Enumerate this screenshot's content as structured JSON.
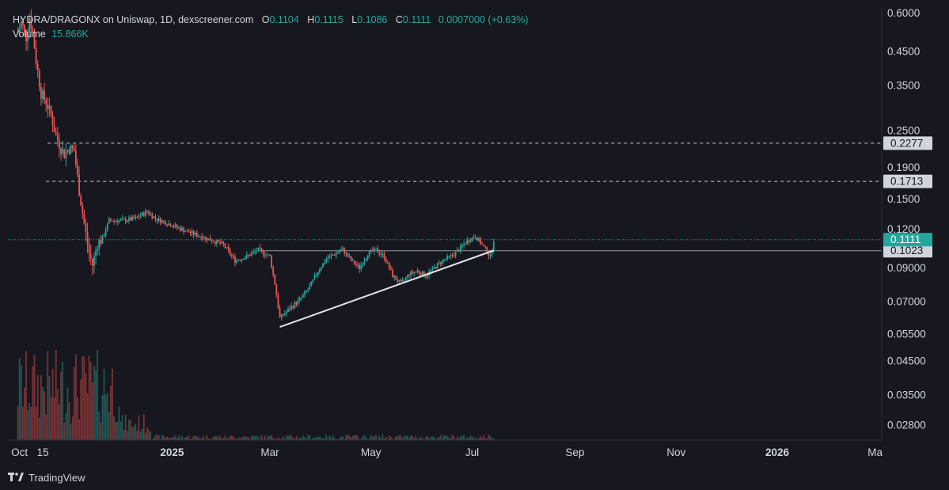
{
  "header": {
    "pair": "HYDRA/DRAGONX on Uniswap, 1D, dexscreener.com",
    "o_label": "O",
    "o_value": "0.1104",
    "h_label": "H",
    "h_value": "0.1115",
    "l_label": "L",
    "l_value": "0.1086",
    "c_label": "C",
    "c_value": "0.1111",
    "change": "0.0007000 (+0.63%)",
    "volume_label": "Volume",
    "volume_value": "15.866K"
  },
  "footer": {
    "brand": "TradingView"
  },
  "colors": {
    "background": "#17181f",
    "up": "#26a69a",
    "down": "#ef5350",
    "grid_text": "#d1d4dc",
    "last_price_badge": "#26a69a",
    "level_badge": "#d1d4dc"
  },
  "chart_data": {
    "type": "candlestick",
    "x_axis": {
      "tick_labels": [
        "Oct",
        "15",
        "2025",
        "Mar",
        "May",
        "Jul",
        "Sep",
        "Nov",
        "2026",
        "Ma"
      ],
      "range": [
        "2024-09-24",
        "2026-03-05"
      ]
    },
    "y_axis": {
      "scale": "log",
      "tick_labels": [
        "0.6000",
        "0.4500",
        "0.3500",
        "0.2500",
        "0.1900",
        "0.1500",
        "0.1200",
        "0.09000",
        "0.07000",
        "0.05500",
        "0.04500",
        "0.03500",
        "0.02800"
      ],
      "range": [
        0.025,
        0.63
      ]
    },
    "last_price": {
      "label": "0.1111",
      "value": 0.1111
    },
    "levels": [
      {
        "label": "0.2277",
        "value": 0.2277,
        "style": "dashed",
        "start": "2024-10-18"
      },
      {
        "label": "0.1713",
        "value": 0.1713,
        "style": "dashed",
        "start": "2024-10-17"
      },
      {
        "label": "0.1023",
        "value": 0.1023,
        "style": "solid",
        "start": "2025-02-22"
      }
    ],
    "trendline": {
      "from": [
        "2025-03-07",
        0.058
      ],
      "to": [
        "2025-07-14",
        0.1025
      ],
      "color": "#e0e3eb"
    },
    "price_path": [
      [
        "2024-09-30",
        0.52
      ],
      [
        "2024-10-02",
        0.56
      ],
      [
        "2024-10-05",
        0.5
      ],
      [
        "2024-10-07",
        0.58
      ],
      [
        "2024-10-09",
        0.52
      ],
      [
        "2024-10-11",
        0.42
      ],
      [
        "2024-10-14",
        0.33
      ],
      [
        "2024-10-17",
        0.31
      ],
      [
        "2024-10-20",
        0.28
      ],
      [
        "2024-10-23",
        0.24
      ],
      [
        "2024-10-26",
        0.22
      ],
      [
        "2024-10-28",
        0.21
      ],
      [
        "2024-10-31",
        0.22
      ],
      [
        "2024-11-03",
        0.215
      ],
      [
        "2024-11-06",
        0.16
      ],
      [
        "2024-11-09",
        0.125
      ],
      [
        "2024-11-12",
        0.1
      ],
      [
        "2024-11-14",
        0.092
      ],
      [
        "2024-11-17",
        0.108
      ],
      [
        "2024-11-20",
        0.112
      ],
      [
        "2024-11-24",
        0.128
      ],
      [
        "2024-12-02",
        0.128
      ],
      [
        "2024-12-10",
        0.13
      ],
      [
        "2024-12-17",
        0.137
      ],
      [
        "2024-12-22",
        0.13
      ],
      [
        "2024-12-30",
        0.125
      ],
      [
        "2025-01-10",
        0.118
      ],
      [
        "2025-01-22",
        0.112
      ],
      [
        "2025-02-01",
        0.107
      ],
      [
        "2025-02-08",
        0.095
      ],
      [
        "2025-02-15",
        0.098
      ],
      [
        "2025-02-22",
        0.103
      ],
      [
        "2025-03-01",
        0.098
      ],
      [
        "2025-03-04",
        0.08
      ],
      [
        "2025-03-07",
        0.062
      ],
      [
        "2025-03-11",
        0.065
      ],
      [
        "2025-03-15",
        0.068
      ],
      [
        "2025-03-20",
        0.072
      ],
      [
        "2025-03-25",
        0.078
      ],
      [
        "2025-03-30",
        0.088
      ],
      [
        "2025-04-04",
        0.096
      ],
      [
        "2025-04-09",
        0.1
      ],
      [
        "2025-04-14",
        0.103
      ],
      [
        "2025-04-19",
        0.095
      ],
      [
        "2025-04-24",
        0.09
      ],
      [
        "2025-04-29",
        0.1
      ],
      [
        "2025-05-04",
        0.103
      ],
      [
        "2025-05-09",
        0.098
      ],
      [
        "2025-05-14",
        0.085
      ],
      [
        "2025-05-19",
        0.08
      ],
      [
        "2025-05-24",
        0.086
      ],
      [
        "2025-05-29",
        0.088
      ],
      [
        "2025-06-03",
        0.085
      ],
      [
        "2025-06-08",
        0.09
      ],
      [
        "2025-06-13",
        0.095
      ],
      [
        "2025-06-18",
        0.098
      ],
      [
        "2025-06-23",
        0.103
      ],
      [
        "2025-06-28",
        0.11
      ],
      [
        "2025-07-03",
        0.114
      ],
      [
        "2025-07-08",
        0.105
      ],
      [
        "2025-07-12",
        0.098
      ],
      [
        "2025-07-14",
        0.1111
      ]
    ]
  }
}
